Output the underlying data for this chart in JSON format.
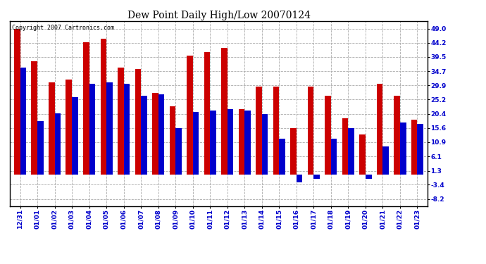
{
  "title": "Dew Point Daily High/Low 20070124",
  "copyright": "Copyright 2007 Cartronics.com",
  "dates": [
    "12/31",
    "01/01",
    "01/02",
    "01/03",
    "01/04",
    "01/05",
    "01/06",
    "01/07",
    "01/08",
    "01/09",
    "01/10",
    "01/11",
    "01/12",
    "01/13",
    "01/14",
    "01/15",
    "01/16",
    "01/17",
    "01/18",
    "01/19",
    "01/20",
    "01/21",
    "01/22",
    "01/23"
  ],
  "highs": [
    49.0,
    38.0,
    31.0,
    32.0,
    44.5,
    45.5,
    36.0,
    35.5,
    27.5,
    23.0,
    40.0,
    41.0,
    42.5,
    22.0,
    29.5,
    29.5,
    15.6,
    29.5,
    26.5,
    19.0,
    13.5,
    30.5,
    26.5,
    18.5
  ],
  "lows": [
    36.0,
    18.0,
    20.5,
    26.0,
    30.5,
    31.0,
    30.5,
    26.5,
    27.0,
    15.6,
    21.0,
    21.5,
    22.0,
    21.5,
    20.4,
    12.0,
    -2.5,
    -1.5,
    12.0,
    15.6,
    -1.5,
    9.5,
    17.5,
    17.0
  ],
  "bar_width": 0.35,
  "high_color": "#cc0000",
  "low_color": "#0000cc",
  "bg_color": "#ffffff",
  "grid_color": "#aaaaaa",
  "yticks": [
    49.0,
    44.2,
    39.5,
    34.7,
    29.9,
    25.2,
    20.4,
    15.6,
    10.9,
    6.1,
    1.3,
    -3.4,
    -8.2
  ],
  "ylim": [
    -10.5,
    51.5
  ],
  "title_fontsize": 10,
  "tick_fontsize": 6.5,
  "copyright_fontsize": 6
}
